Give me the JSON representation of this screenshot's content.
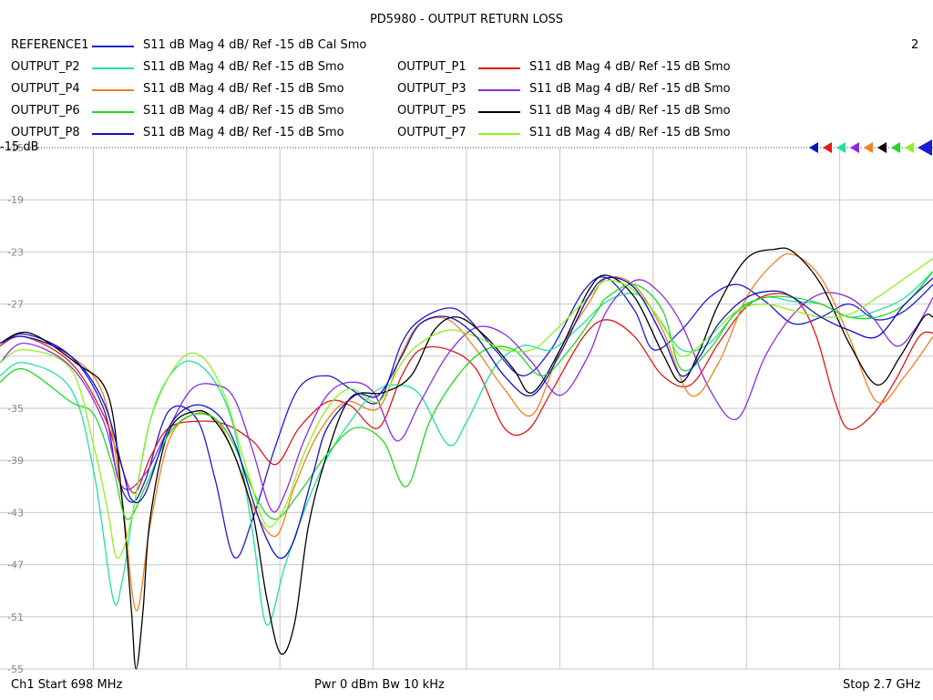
{
  "title": "PD5980 - OUTPUT RETURN LOSS",
  "window_number": "2",
  "reference_label": "-15 dB",
  "legend": [
    {
      "name": "REFERENCE1",
      "desc": "S11  dB Mag  4 dB/ Ref -15 dB  Cal Smo",
      "color": "#1c1cd6"
    },
    {
      "name": "OUTPUT_P1",
      "desc": "S11  dB Mag  4 dB/ Ref -15 dB  Smo",
      "color": "#e01818"
    },
    {
      "name": "OUTPUT_P2",
      "desc": "S11  dB Mag  4 dB/ Ref -15 dB  Smo",
      "color": "#20e0a0"
    },
    {
      "name": "OUTPUT_P3",
      "desc": "S11  dB Mag  4 dB/ Ref -15 dB  Smo",
      "color": "#8a2be2"
    },
    {
      "name": "OUTPUT_P4",
      "desc": "S11  dB Mag  4 dB/ Ref -15 dB  Smo",
      "color": "#f08020"
    },
    {
      "name": "OUTPUT_P5",
      "desc": "S11  dB Mag  4 dB/ Ref -15 dB  Smo",
      "color": "#000000"
    },
    {
      "name": "OUTPUT_P6",
      "desc": "S11  dB Mag  4 dB/ Ref -15 dB  Smo",
      "color": "#20d820"
    },
    {
      "name": "OUTPUT_P7",
      "desc": "S11  dB Mag  4 dB/ Ref -15 dB  Smo",
      "color": "#90f020"
    },
    {
      "name": "OUTPUT_P8",
      "desc": "S11  dB Mag  4 dB/ Ref -15 dB  Smo",
      "color": "#1010c0"
    }
  ],
  "footer": {
    "start": "Ch1  Start  698 MHz",
    "mid": "Pwr  0 dBm  Bw  10 kHz",
    "stop": "Stop  2.7 GHz"
  },
  "chart_data": {
    "type": "line",
    "title": "PD5980 - OUTPUT RETURN LOSS",
    "x_unit": "MHz",
    "xlim": [
      698,
      2700
    ],
    "ylim": [
      -55,
      -15
    ],
    "yticks": [
      -15,
      -19,
      -23,
      -27,
      -31,
      -35,
      -39,
      -43,
      -47,
      -51,
      -55
    ],
    "ytick_labels": [
      "-15",
      "-19",
      "-23",
      "-27",
      "",
      "-35",
      "-39",
      "-43",
      "-47",
      "-51",
      "-55"
    ],
    "grid": true,
    "series": [
      {
        "name": "REFERENCE1",
        "color": "#1c1cd6",
        "x": [
          698,
          750,
          850,
          920,
          950,
          980,
          1010,
          1060,
          1120,
          1160,
          1200,
          1240,
          1290,
          1340,
          1400,
          1450,
          1510,
          1560,
          1600,
          1660,
          1700,
          1760,
          1820,
          1880,
          1950,
          2000,
          2060,
          2100,
          2160,
          2220,
          2280,
          2340,
          2400,
          2460,
          2520,
          2580,
          2640,
          2700
        ],
        "y": [
          -30.2,
          -29.3,
          -31.0,
          -35.0,
          -40.2,
          -42.2,
          -40.5,
          -35.2,
          -35.8,
          -40.5,
          -46.4,
          -43.5,
          -37.8,
          -33.4,
          -32.5,
          -33.5,
          -34.5,
          -30.0,
          -28.2,
          -27.3,
          -28.0,
          -30.5,
          -32.5,
          -30.5,
          -26.0,
          -25.0,
          -27.5,
          -30.5,
          -29.0,
          -26.5,
          -25.5,
          -26.8,
          -28.5,
          -28.0,
          -27.0,
          -28.2,
          -27.5,
          -25.5
        ]
      },
      {
        "name": "OUTPUT_P1",
        "color": "#e01818",
        "x": [
          698,
          750,
          850,
          920,
          950,
          985,
          1020,
          1060,
          1120,
          1180,
          1240,
          1290,
          1340,
          1400,
          1450,
          1510,
          1560,
          1600,
          1660,
          1720,
          1780,
          1830,
          1880,
          1950,
          2000,
          2060,
          2120,
          2180,
          2240,
          2300,
          2360,
          2410,
          2450,
          2490,
          2520,
          2570,
          2620,
          2670,
          2700
        ],
        "y": [
          -30.2,
          -29.5,
          -31.5,
          -35.5,
          -38.5,
          -41.5,
          -38.8,
          -36.5,
          -36.0,
          -36.2,
          -37.5,
          -39.3,
          -36.5,
          -34.5,
          -34.8,
          -36.5,
          -32.5,
          -30.5,
          -30.5,
          -32.0,
          -36.5,
          -36.7,
          -33.8,
          -29.5,
          -28.2,
          -29.5,
          -32.5,
          -33.2,
          -30.0,
          -27.2,
          -26.2,
          -26.8,
          -29.5,
          -34.5,
          -36.6,
          -35.5,
          -32.8,
          -29.5,
          -29.2
        ]
      },
      {
        "name": "OUTPUT_P2",
        "color": "#20e0a0",
        "x": [
          698,
          750,
          850,
          900,
          940,
          960,
          990,
          1030,
          1090,
          1150,
          1200,
          1240,
          1270,
          1310,
          1360,
          1400,
          1440,
          1500,
          1550,
          1600,
          1660,
          1700,
          1760,
          1820,
          1880,
          1940,
          2000,
          2060,
          2100,
          2160,
          2220,
          2280,
          2340,
          2400,
          2460,
          2520,
          2580,
          2640,
          2700
        ],
        "y": [
          -32.5,
          -31.5,
          -33.5,
          -40.0,
          -49.5,
          -48.3,
          -41.5,
          -34.8,
          -31.5,
          -32.5,
          -36.5,
          -44.5,
          -51.6,
          -47.0,
          -42.0,
          -38.8,
          -36.5,
          -33.8,
          -33.2,
          -34.0,
          -37.8,
          -36.0,
          -31.8,
          -30.2,
          -30.5,
          -28.8,
          -26.8,
          -26.2,
          -27.5,
          -30.5,
          -30.0,
          -27.6,
          -26.5,
          -26.8,
          -27.0,
          -28.0,
          -27.5,
          -26.5,
          -24.5
        ]
      },
      {
        "name": "OUTPUT_P3",
        "color": "#8a2be2",
        "x": [
          698,
          750,
          850,
          920,
          960,
          1010,
          1060,
          1110,
          1160,
          1200,
          1240,
          1280,
          1310,
          1350,
          1400,
          1450,
          1500,
          1550,
          1600,
          1660,
          1720,
          1780,
          1840,
          1900,
          1960,
          2000,
          2060,
          2110,
          2160,
          2220,
          2280,
          2340,
          2400,
          2460,
          2520,
          2570,
          2620,
          2660,
          2700
        ],
        "y": [
          -31.5,
          -30.0,
          -31.8,
          -36.0,
          -41.0,
          -40.0,
          -36.5,
          -33.5,
          -33.2,
          -34.2,
          -38.2,
          -42.8,
          -41.5,
          -37.5,
          -34.0,
          -33.0,
          -33.8,
          -37.5,
          -34.5,
          -30.8,
          -28.8,
          -29.3,
          -31.5,
          -34.0,
          -31.0,
          -27.5,
          -25.2,
          -26.0,
          -28.5,
          -33.5,
          -35.8,
          -31.0,
          -27.8,
          -26.2,
          -26.5,
          -28.0,
          -30.2,
          -29.0,
          -26.5
        ]
      },
      {
        "name": "OUTPUT_P4",
        "color": "#f08020",
        "x": [
          698,
          750,
          850,
          920,
          960,
          990,
          1020,
          1060,
          1110,
          1160,
          1200,
          1240,
          1290,
          1330,
          1380,
          1440,
          1510,
          1560,
          1600,
          1660,
          1720,
          1780,
          1840,
          1900,
          1960,
          2000,
          2060,
          2120,
          2180,
          2240,
          2300,
          2360,
          2400,
          2460,
          2520,
          2580,
          2640,
          2700
        ],
        "y": [
          -30.0,
          -29.5,
          -31.0,
          -34.0,
          -42.0,
          -50.5,
          -44.0,
          -37.5,
          -35.5,
          -35.8,
          -38.5,
          -42.5,
          -44.8,
          -41.0,
          -37.0,
          -34.5,
          -35.0,
          -30.8,
          -28.5,
          -28.2,
          -30.5,
          -33.5,
          -35.5,
          -30.5,
          -27.0,
          -25.0,
          -25.6,
          -29.0,
          -34.0,
          -31.5,
          -26.5,
          -23.8,
          -23.2,
          -25.0,
          -29.5,
          -34.5,
          -32.5,
          -29.5
        ]
      },
      {
        "name": "OUTPUT_P5",
        "color": "#000000",
        "x": [
          698,
          760,
          860,
          930,
          960,
          980,
          990,
          1005,
          1020,
          1060,
          1120,
          1160,
          1200,
          1240,
          1270,
          1300,
          1330,
          1360,
          1400,
          1450,
          1520,
          1580,
          1630,
          1680,
          1740,
          1800,
          1840,
          1900,
          1960,
          2000,
          2060,
          2120,
          2160,
          2200,
          2240,
          2300,
          2360,
          2400,
          2460,
          2520,
          2580,
          2630,
          2680,
          2700
        ],
        "y": [
          -30.0,
          -29.2,
          -31.5,
          -34.0,
          -42.0,
          -50.5,
          -55.0,
          -50.5,
          -43.5,
          -36.8,
          -35.2,
          -36.0,
          -38.5,
          -43.0,
          -49.5,
          -53.8,
          -51.5,
          -44.0,
          -38.5,
          -34.2,
          -33.8,
          -32.5,
          -29.0,
          -28.0,
          -29.5,
          -32.0,
          -33.8,
          -30.5,
          -26.0,
          -24.8,
          -26.5,
          -30.8,
          -33.0,
          -30.5,
          -27.0,
          -23.5,
          -22.8,
          -23.0,
          -25.5,
          -30.0,
          -33.2,
          -31.0,
          -28.0,
          -28.0
        ]
      },
      {
        "name": "OUTPUT_P6",
        "color": "#20d820",
        "x": [
          698,
          750,
          850,
          900,
          940,
          970,
          1010,
          1060,
          1110,
          1160,
          1200,
          1250,
          1290,
          1340,
          1400,
          1460,
          1520,
          1570,
          1620,
          1680,
          1740,
          1800,
          1860,
          1920,
          1980,
          2000,
          2060,
          2120,
          2160,
          2220,
          2280,
          2340,
          2400,
          2460,
          2520,
          2580,
          2640,
          2700
        ],
        "y": [
          -33.0,
          -32.0,
          -34.5,
          -35.5,
          -39.5,
          -43.5,
          -41.0,
          -37.0,
          -35.5,
          -35.8,
          -37.8,
          -42.0,
          -43.5,
          -41.5,
          -38.5,
          -36.5,
          -37.5,
          -41.0,
          -36.0,
          -32.5,
          -30.5,
          -30.5,
          -32.5,
          -30.5,
          -27.5,
          -26.5,
          -25.5,
          -27.5,
          -32.0,
          -30.5,
          -27.5,
          -26.5,
          -26.5,
          -27.0,
          -28.0,
          -28.0,
          -27.0,
          -24.5
        ]
      },
      {
        "name": "OUTPUT_P7",
        "color": "#90f020",
        "x": [
          698,
          750,
          850,
          900,
          930,
          950,
          980,
          1020,
          1080,
          1130,
          1180,
          1230,
          1270,
          1310,
          1350,
          1400,
          1450,
          1510,
          1560,
          1600,
          1660,
          1720,
          1780,
          1840,
          1890,
          1960,
          2000,
          2060,
          2120,
          2160,
          2220,
          2280,
          2340,
          2400,
          2460,
          2520,
          2580,
          2640,
          2700
        ],
        "y": [
          -31.5,
          -30.5,
          -32.0,
          -38.0,
          -43.0,
          -46.5,
          -43.5,
          -36.0,
          -31.5,
          -31.0,
          -34.0,
          -40.0,
          -44.0,
          -42.5,
          -38.5,
          -35.0,
          -33.5,
          -34.5,
          -31.5,
          -30.0,
          -29.0,
          -29.5,
          -30.5,
          -30.5,
          -29.0,
          -26.5,
          -25.2,
          -26.0,
          -28.5,
          -31.0,
          -29.5,
          -27.5,
          -27.0,
          -27.5,
          -28.0,
          -27.8,
          -26.5,
          -25.0,
          -23.5
        ]
      },
      {
        "name": "OUTPUT_P8",
        "color": "#1010c0",
        "x": [
          698,
          750,
          850,
          920,
          960,
          980,
          1010,
          1060,
          1110,
          1160,
          1200,
          1240,
          1270,
          1300,
          1330,
          1370,
          1400,
          1460,
          1510,
          1560,
          1600,
          1660,
          1720,
          1780,
          1840,
          1900,
          1960,
          2000,
          2060,
          2120,
          2160,
          2200,
          2240,
          2300,
          2360,
          2400,
          2460,
          2520,
          2580,
          2640,
          2700
        ],
        "y": [
          -30.0,
          -29.5,
          -31.0,
          -34.5,
          -39.5,
          -42.0,
          -41.5,
          -36.5,
          -34.8,
          -35.3,
          -37.5,
          -42.0,
          -45.0,
          -46.5,
          -45.0,
          -40.0,
          -36.5,
          -34.0,
          -34.0,
          -31.0,
          -28.5,
          -28.0,
          -29.5,
          -32.5,
          -34.0,
          -30.8,
          -26.5,
          -25.0,
          -25.8,
          -29.5,
          -32.5,
          -31.0,
          -28.5,
          -26.5,
          -26.0,
          -26.5,
          -28.0,
          -29.0,
          -29.5,
          -27.0,
          -25.0
        ]
      }
    ]
  }
}
